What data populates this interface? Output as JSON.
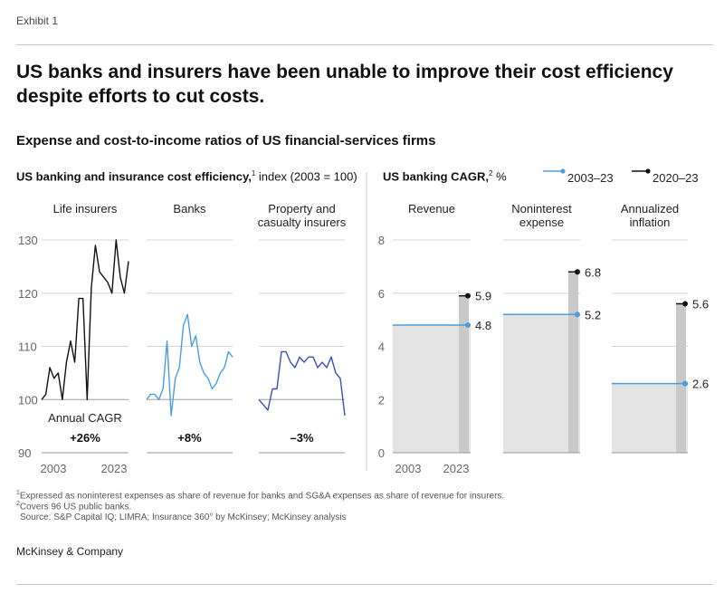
{
  "exhibit_label": "Exhibit 1",
  "title_line1": "US banks and insurers have been unable to improve their cost efficiency",
  "title_line2": "despite efforts to cut costs.",
  "subtitle": "Expense and cost-to-income ratios of US financial-services firms",
  "left_section": {
    "title": "US banking and insurance cost efficiency,",
    "sup": "1",
    "unit": " index (2003 = 100)"
  },
  "right_section": {
    "title": "US banking CAGR,",
    "sup": "2",
    "unit": " %"
  },
  "footnotes": {
    "f1_sup": "1",
    "f1": "Expressed as noninterest expenses as share of revenue for banks and SG&A expenses as share of revenue for insurers.",
    "f2_sup": "2",
    "f2": "Covers 96 US public banks.",
    "source": "Source: S&P Capital IQ; LIMRA; Insurance 360° by McKinsey; McKinsey analysis"
  },
  "brand": "McKinsey & Company",
  "colors": {
    "blue": "#4a9ee0",
    "black": "#111111",
    "navy": "#3a4fb8",
    "gray_area": "#e4e4e4",
    "gray_bar": "#c9c9c9",
    "grid": "#d4d4d4"
  },
  "chart_data": [
    {
      "type": "line",
      "title": "US banking and insurance cost efficiency, index (2003 = 100)",
      "ylim": [
        90,
        130
      ],
      "yticks": [
        90,
        100,
        110,
        120,
        130
      ],
      "x_tick_labels": [
        "2003",
        "2023"
      ],
      "cagr_label": "Annual CAGR",
      "panels": [
        {
          "name": "Life insurers",
          "cagr": "+26%",
          "color": "#111111",
          "values": [
            100,
            101,
            106,
            104,
            105,
            100,
            107,
            111,
            107,
            119,
            119,
            100,
            121,
            129,
            124,
            123,
            122,
            120,
            130,
            123,
            120,
            126
          ]
        },
        {
          "name": "Banks",
          "cagr": "+8%",
          "color": "#4a9ee0",
          "values": [
            100,
            101,
            101,
            100,
            102,
            111,
            97,
            104,
            106,
            114,
            116,
            110,
            112,
            107,
            105,
            104,
            102,
            103,
            105,
            106,
            109,
            108
          ]
        },
        {
          "name_line1": "Property and",
          "name_line2": "casualty insurers",
          "cagr": "–3%",
          "color": "#3a4fb8",
          "values": [
            100,
            99,
            98,
            102,
            102,
            109,
            109,
            107,
            106,
            108,
            107,
            108,
            108,
            106,
            107,
            106,
            108,
            105,
            104,
            97
          ]
        }
      ]
    },
    {
      "type": "bar",
      "title": "US banking CAGR, %",
      "ylim": [
        0,
        8
      ],
      "yticks": [
        0,
        2,
        4,
        6,
        8
      ],
      "x_tick_labels": [
        "2003",
        "2023"
      ],
      "legend": {
        "position": "top-right",
        "s1": "2003–23",
        "s2": "2020–23"
      },
      "categories": [
        {
          "name": "Revenue"
        },
        {
          "name_line1": "Noninterest",
          "name_line2": "expense"
        },
        {
          "name_line1": "Annualized",
          "name_line2": "inflation"
        }
      ],
      "series": [
        {
          "name": "2003–23",
          "values": [
            4.8,
            5.2,
            2.6
          ],
          "labels": [
            "4.8",
            "5.2",
            "2.6"
          ]
        },
        {
          "name": "2020–23",
          "values": [
            5.9,
            6.8,
            5.6
          ],
          "labels": [
            "5.9",
            "6.8",
            "5.6"
          ]
        }
      ]
    }
  ]
}
